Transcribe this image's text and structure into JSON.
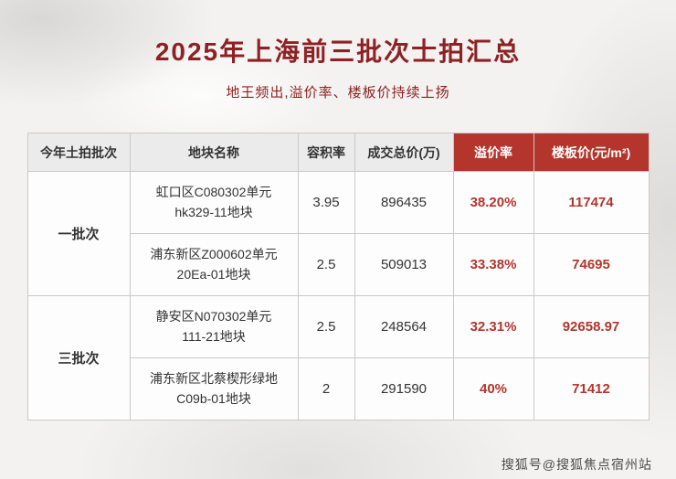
{
  "page": {
    "title": "2025年上海前三批次士拍汇总",
    "subtitle": "地王频出,溢价率、楼板价持续上扬",
    "watermark": "搜狐号@搜狐焦点宿州站"
  },
  "colors": {
    "title_red": "#8e2124",
    "header_red": "#b3352c",
    "value_red": "#b3352c",
    "header_gray": "#ebebeb"
  },
  "table": {
    "headers": [
      "今年土拍批次",
      "地块名称",
      "容积率",
      "成交总价(万)",
      "溢价率",
      "楼板价(元/m²)"
    ],
    "groups": [
      {
        "batch": "一批次",
        "rows": [
          {
            "name": "虹口区C080302单元\nhk329-11地块",
            "far": "3.95",
            "total": "896435",
            "premium": "38.20%",
            "floor": "117474"
          },
          {
            "name": "浦东新区Z000602单元\n20Ea-01地块",
            "far": "2.5",
            "total": "509013",
            "premium": "33.38%",
            "floor": "74695"
          }
        ]
      },
      {
        "batch": "三批次",
        "rows": [
          {
            "name": "静安区N070302单元\n111-21地块",
            "far": "2.5",
            "total": "248564",
            "premium": "32.31%",
            "floor": "92658.97"
          },
          {
            "name": "浦东新区北蔡楔形绿地\nC09b-01地块",
            "far": "2",
            "total": "291590",
            "premium": "40%",
            "floor": "71412"
          }
        ]
      }
    ]
  },
  "chart_data": {
    "type": "table",
    "title": "2025年上海前三批次士拍汇总",
    "subtitle": "地王频出,溢价率、楼板价持续上扬",
    "columns": [
      "今年土拍批次",
      "地块名称",
      "容积率",
      "成交总价(万)",
      "溢价率",
      "楼板价(元/m²)"
    ],
    "rows": [
      [
        "一批次",
        "虹口区C080302单元 hk329-11地块",
        3.95,
        896435,
        "38.20%",
        117474
      ],
      [
        "一批次",
        "浦东新区Z000602单元 20Ea-01地块",
        2.5,
        509013,
        "33.38%",
        74695
      ],
      [
        "三批次",
        "静安区N070302单元 111-21地块",
        2.5,
        248564,
        "32.31%",
        92658.97
      ],
      [
        "三批次",
        "浦东新区北蔡楔形绿地 C09b-01地块",
        2,
        291590,
        "40%",
        71412
      ]
    ]
  }
}
